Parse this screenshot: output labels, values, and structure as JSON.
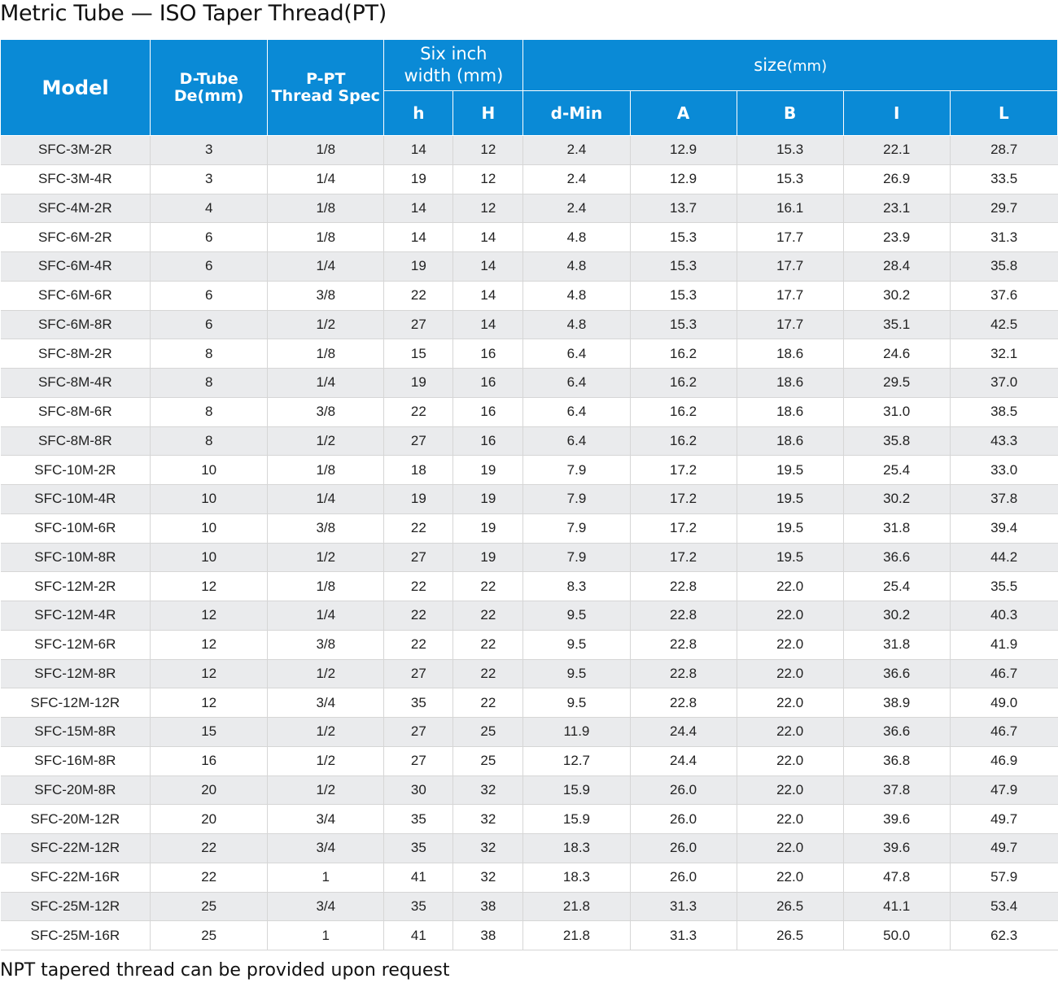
{
  "title": "Metric Tube — ISO Taper Thread(PT)",
  "footnote": "NPT tapered thread can be provided upon request",
  "colors": {
    "header_bg": "#0a8ad6",
    "row_alt": "#eaebed"
  },
  "header": {
    "model": "Model",
    "tube_line1": "D-Tube",
    "tube_line2": "De(mm)",
    "thread_line1": "P-PT",
    "thread_line2": "Thread Spec",
    "width_line1": "Six inch",
    "width_line2": "width (mm)",
    "size": "size",
    "size_unit": "(mm)",
    "sub": [
      "h",
      "H",
      "d-Min",
      "A",
      "B",
      "I",
      "L"
    ]
  },
  "rows": [
    [
      "SFC-3M-2R",
      "3",
      "1/8",
      "14",
      "12",
      "2.4",
      "12.9",
      "15.3",
      "22.1",
      "28.7"
    ],
    [
      "SFC-3M-4R",
      "3",
      "1/4",
      "19",
      "12",
      "2.4",
      "12.9",
      "15.3",
      "26.9",
      "33.5"
    ],
    [
      "SFC-4M-2R",
      "4",
      "1/8",
      "14",
      "12",
      "2.4",
      "13.7",
      "16.1",
      "23.1",
      "29.7"
    ],
    [
      "SFC-6M-2R",
      "6",
      "1/8",
      "14",
      "14",
      "4.8",
      "15.3",
      "17.7",
      "23.9",
      "31.3"
    ],
    [
      "SFC-6M-4R",
      "6",
      "1/4",
      "19",
      "14",
      "4.8",
      "15.3",
      "17.7",
      "28.4",
      "35.8"
    ],
    [
      "SFC-6M-6R",
      "6",
      "3/8",
      "22",
      "14",
      "4.8",
      "15.3",
      "17.7",
      "30.2",
      "37.6"
    ],
    [
      "SFC-6M-8R",
      "6",
      "1/2",
      "27",
      "14",
      "4.8",
      "15.3",
      "17.7",
      "35.1",
      "42.5"
    ],
    [
      "SFC-8M-2R",
      "8",
      "1/8",
      "15",
      "16",
      "6.4",
      "16.2",
      "18.6",
      "24.6",
      "32.1"
    ],
    [
      "SFC-8M-4R",
      "8",
      "1/4",
      "19",
      "16",
      "6.4",
      "16.2",
      "18.6",
      "29.5",
      "37.0"
    ],
    [
      "SFC-8M-6R",
      "8",
      "3/8",
      "22",
      "16",
      "6.4",
      "16.2",
      "18.6",
      "31.0",
      "38.5"
    ],
    [
      "SFC-8M-8R",
      "8",
      "1/2",
      "27",
      "16",
      "6.4",
      "16.2",
      "18.6",
      "35.8",
      "43.3"
    ],
    [
      "SFC-10M-2R",
      "10",
      "1/8",
      "18",
      "19",
      "7.9",
      "17.2",
      "19.5",
      "25.4",
      "33.0"
    ],
    [
      "SFC-10M-4R",
      "10",
      "1/4",
      "19",
      "19",
      "7.9",
      "17.2",
      "19.5",
      "30.2",
      "37.8"
    ],
    [
      "SFC-10M-6R",
      "10",
      "3/8",
      "22",
      "19",
      "7.9",
      "17.2",
      "19.5",
      "31.8",
      "39.4"
    ],
    [
      "SFC-10M-8R",
      "10",
      "1/2",
      "27",
      "19",
      "7.9",
      "17.2",
      "19.5",
      "36.6",
      "44.2"
    ],
    [
      "SFC-12M-2R",
      "12",
      "1/8",
      "22",
      "22",
      "8.3",
      "22.8",
      "22.0",
      "25.4",
      "35.5"
    ],
    [
      "SFC-12M-4R",
      "12",
      "1/4",
      "22",
      "22",
      "9.5",
      "22.8",
      "22.0",
      "30.2",
      "40.3"
    ],
    [
      "SFC-12M-6R",
      "12",
      "3/8",
      "22",
      "22",
      "9.5",
      "22.8",
      "22.0",
      "31.8",
      "41.9"
    ],
    [
      "SFC-12M-8R",
      "12",
      "1/2",
      "27",
      "22",
      "9.5",
      "22.8",
      "22.0",
      "36.6",
      "46.7"
    ],
    [
      "SFC-12M-12R",
      "12",
      "3/4",
      "35",
      "22",
      "9.5",
      "22.8",
      "22.0",
      "38.9",
      "49.0"
    ],
    [
      "SFC-15M-8R",
      "15",
      "1/2",
      "27",
      "25",
      "11.9",
      "24.4",
      "22.0",
      "36.6",
      "46.7"
    ],
    [
      "SFC-16M-8R",
      "16",
      "1/2",
      "27",
      "25",
      "12.7",
      "24.4",
      "22.0",
      "36.8",
      "46.9"
    ],
    [
      "SFC-20M-8R",
      "20",
      "1/2",
      "30",
      "32",
      "15.9",
      "26.0",
      "22.0",
      "37.8",
      "47.9"
    ],
    [
      "SFC-20M-12R",
      "20",
      "3/4",
      "35",
      "32",
      "15.9",
      "26.0",
      "22.0",
      "39.6",
      "49.7"
    ],
    [
      "SFC-22M-12R",
      "22",
      "3/4",
      "35",
      "32",
      "18.3",
      "26.0",
      "22.0",
      "39.6",
      "49.7"
    ],
    [
      "SFC-22M-16R",
      "22",
      "1",
      "41",
      "32",
      "18.3",
      "26.0",
      "22.0",
      "47.8",
      "57.9"
    ],
    [
      "SFC-25M-12R",
      "25",
      "3/4",
      "35",
      "38",
      "21.8",
      "31.3",
      "26.5",
      "41.1",
      "53.4"
    ],
    [
      "SFC-25M-16R",
      "25",
      "1",
      "41",
      "38",
      "21.8",
      "31.3",
      "26.5",
      "50.0",
      "62.3"
    ]
  ]
}
